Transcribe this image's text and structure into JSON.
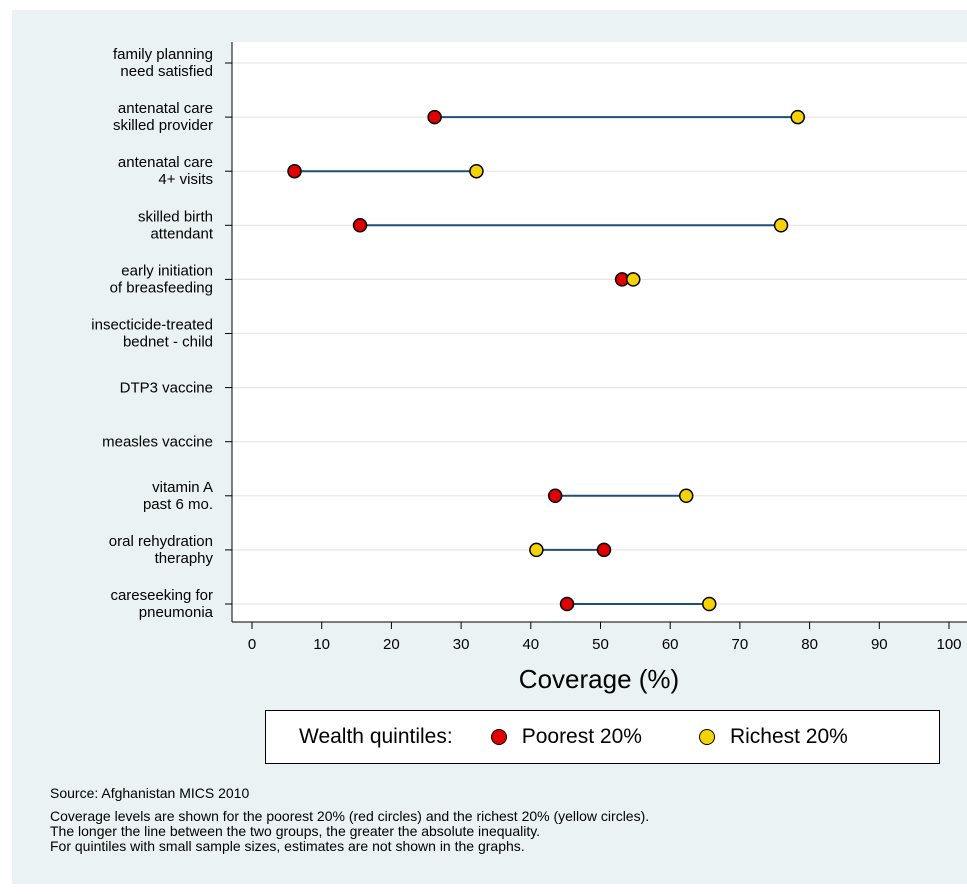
{
  "chart_data": {
    "type": "dumbbell",
    "categories": [
      [
        "family planning",
        "need satisfied"
      ],
      [
        "antenatal care",
        "skilled provider"
      ],
      [
        "antenatal care",
        "4+ visits"
      ],
      [
        "skilled birth",
        "attendant"
      ],
      [
        "early initiation",
        "of breasfeeding"
      ],
      [
        "insecticide-treated",
        "bednet - child"
      ],
      [
        "DTP3 vaccine"
      ],
      [
        "measles vaccine"
      ],
      [
        "vitamin A",
        "past 6 mo."
      ],
      [
        "oral rehydration",
        "theraphy"
      ],
      [
        "careseeking for",
        "pneumonia"
      ]
    ],
    "series": [
      {
        "name": "Poorest 20%",
        "color": "#e00000",
        "values": [
          null,
          26.2,
          6.1,
          15.5,
          53.1,
          null,
          null,
          null,
          43.5,
          50.5,
          45.2
        ]
      },
      {
        "name": "Richest 20%",
        "color": "#f5d300",
        "values": [
          null,
          78.3,
          32.2,
          75.9,
          54.7,
          null,
          null,
          null,
          62.3,
          40.8,
          65.6
        ]
      }
    ],
    "line_color": "#1f4e79",
    "xlim": [
      0,
      100
    ],
    "xticks": [
      0,
      10,
      20,
      30,
      40,
      50,
      60,
      70,
      80,
      90,
      100
    ],
    "xlabel": "Coverage (%)",
    "grid": true,
    "legend_position": "bottom"
  },
  "legend": {
    "title": "Wealth quintiles:",
    "items": [
      "Poorest 20%",
      "Richest 20%"
    ]
  },
  "source": "Source: Afghanistan MICS 2010",
  "notes": [
    "Coverage levels are shown for the poorest 20% (red circles) and the richest 20% (yellow circles).",
    "The longer the line between the two groups, the greater the absolute inequality.",
    "For quintiles with small sample sizes, estimates are not shown in the graphs."
  ]
}
